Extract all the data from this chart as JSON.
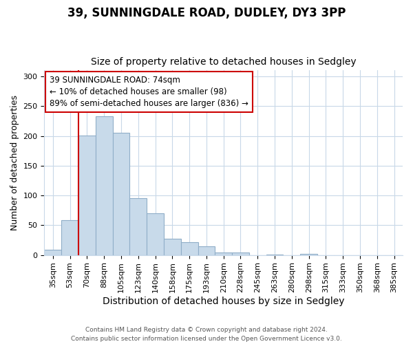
{
  "title1": "39, SUNNINGDALE ROAD, DUDLEY, DY3 3PP",
  "title2": "Size of property relative to detached houses in Sedgley",
  "xlabel": "Distribution of detached houses by size in Sedgley",
  "ylabel": "Number of detached properties",
  "categories": [
    "35sqm",
    "53sqm",
    "70sqm",
    "88sqm",
    "105sqm",
    "123sqm",
    "140sqm",
    "158sqm",
    "175sqm",
    "193sqm",
    "210sqm",
    "228sqm",
    "245sqm",
    "263sqm",
    "280sqm",
    "298sqm",
    "315sqm",
    "333sqm",
    "350sqm",
    "368sqm",
    "385sqm"
  ],
  "values": [
    9,
    59,
    201,
    233,
    205,
    95,
    70,
    27,
    21,
    15,
    4,
    4,
    0,
    1,
    0,
    2,
    0,
    0,
    0,
    0,
    0
  ],
  "bar_color": "#c8daea",
  "bar_edge_color": "#90aec8",
  "vline_color": "#cc0000",
  "vline_x": 2,
  "annotation_text": "39 SUNNINGDALE ROAD: 74sqm\n← 10% of detached houses are smaller (98)\n89% of semi-detached houses are larger (836) →",
  "annotation_box_facecolor": "#ffffff",
  "annotation_box_edgecolor": "#cc0000",
  "ylim": [
    0,
    310
  ],
  "yticks": [
    0,
    50,
    100,
    150,
    200,
    250,
    300
  ],
  "footer1": "Contains HM Land Registry data © Crown copyright and database right 2024.",
  "footer2": "Contains public sector information licensed under the Open Government Licence v3.0.",
  "bg_color": "#ffffff",
  "plot_bg_color": "#ffffff",
  "title1_fontsize": 12,
  "title2_fontsize": 10,
  "ylabel_fontsize": 9,
  "xlabel_fontsize": 10,
  "tick_fontsize": 8,
  "annotation_fontsize": 8.5,
  "footer_fontsize": 6.5
}
